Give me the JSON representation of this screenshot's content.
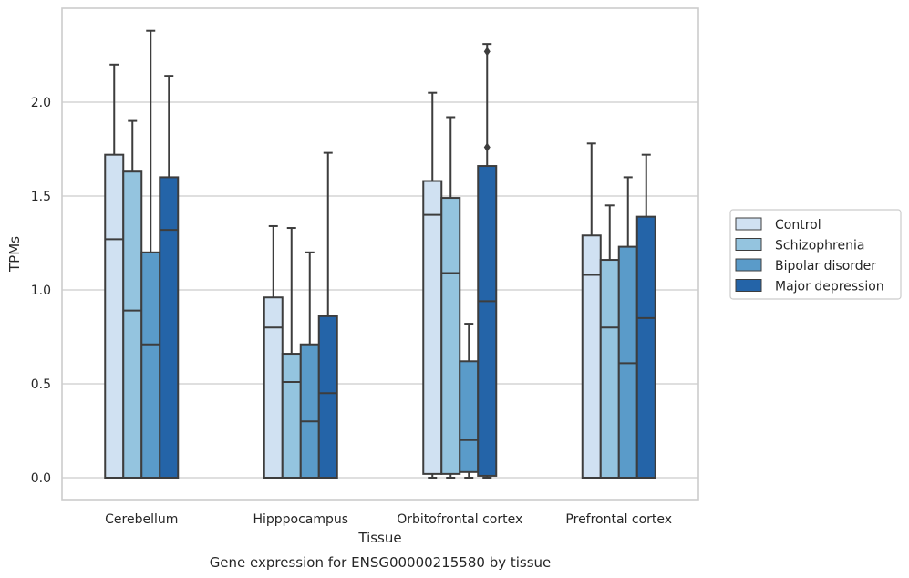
{
  "chart_data": {
    "type": "box",
    "xlabel": "Tissue",
    "ylabel": "TPMs",
    "caption": "Gene expression for ENSG00000215580 by tissue",
    "ylim": [
      -0.12,
      2.5
    ],
    "yticks": [
      0.0,
      0.5,
      1.0,
      1.5,
      2.0
    ],
    "ytick_labels": [
      "0.0",
      "0.5",
      "1.0",
      "1.5",
      "2.0"
    ],
    "grid": "horizontal",
    "legend_position": "right",
    "categories": [
      "Cerebellum",
      "Hipppocampus",
      "Orbitofrontal cortex",
      "Prefrontal cortex"
    ],
    "series": [
      {
        "name": "Control",
        "color": "#d0e1f2",
        "boxes": [
          {
            "min": 0.0,
            "q1": 0.0,
            "median": 1.27,
            "q3": 1.72,
            "max": 2.2,
            "outliers": []
          },
          {
            "min": 0.0,
            "q1": 0.0,
            "median": 0.8,
            "q3": 0.96,
            "max": 1.34,
            "outliers": []
          },
          {
            "min": 0.0,
            "q1": 0.02,
            "median": 1.4,
            "q3": 1.58,
            "max": 2.05,
            "outliers": []
          },
          {
            "min": 0.0,
            "q1": 0.0,
            "median": 1.08,
            "q3": 1.29,
            "max": 1.78,
            "outliers": []
          }
        ]
      },
      {
        "name": "Schizophrenia",
        "color": "#94c4df",
        "boxes": [
          {
            "min": 0.0,
            "q1": 0.0,
            "median": 0.89,
            "q3": 1.63,
            "max": 1.9,
            "outliers": []
          },
          {
            "min": 0.0,
            "q1": 0.0,
            "median": 0.51,
            "q3": 0.66,
            "max": 1.33,
            "outliers": []
          },
          {
            "min": 0.0,
            "q1": 0.02,
            "median": 1.09,
            "q3": 1.49,
            "max": 1.92,
            "outliers": []
          },
          {
            "min": 0.0,
            "q1": 0.0,
            "median": 0.8,
            "q3": 1.16,
            "max": 1.45,
            "outliers": []
          }
        ]
      },
      {
        "name": "Bipolar disorder",
        "color": "#5a9bc9",
        "boxes": [
          {
            "min": 0.0,
            "q1": 0.0,
            "median": 0.71,
            "q3": 1.2,
            "max": 2.38,
            "outliers": []
          },
          {
            "min": 0.0,
            "q1": 0.0,
            "median": 0.3,
            "q3": 0.71,
            "max": 1.2,
            "outliers": []
          },
          {
            "min": 0.0,
            "q1": 0.03,
            "median": 0.2,
            "q3": 0.62,
            "max": 0.82,
            "outliers": []
          },
          {
            "min": 0.0,
            "q1": 0.0,
            "median": 0.61,
            "q3": 1.23,
            "max": 1.6,
            "outliers": []
          }
        ]
      },
      {
        "name": "Major depression",
        "color": "#2464a8",
        "boxes": [
          {
            "min": 0.0,
            "q1": 0.0,
            "median": 1.32,
            "q3": 1.6,
            "max": 2.14,
            "outliers": []
          },
          {
            "min": 0.0,
            "q1": 0.0,
            "median": 0.45,
            "q3": 0.86,
            "max": 1.73,
            "outliers": []
          },
          {
            "min": 0.0,
            "q1": 0.01,
            "median": 0.94,
            "q3": 1.66,
            "max": 2.31,
            "outliers": [
              1.76,
              2.27
            ]
          },
          {
            "min": 0.0,
            "q1": 0.0,
            "median": 0.85,
            "q3": 1.39,
            "max": 1.72,
            "outliers": []
          }
        ]
      }
    ]
  }
}
